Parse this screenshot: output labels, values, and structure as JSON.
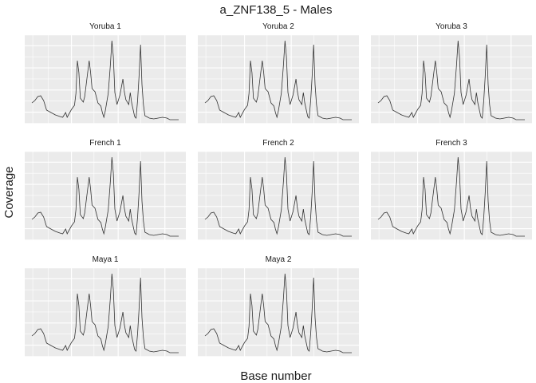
{
  "chart_data": {
    "type": "line",
    "title": "a_ZNF138_5 - Males",
    "xlabel": "Base number",
    "ylabel": "Coverage",
    "facets": [
      {
        "name": "Yoruba 1"
      },
      {
        "name": "Yoruba 2"
      },
      {
        "name": "Yoruba 3"
      },
      {
        "name": "French 1"
      },
      {
        "name": "French 2"
      },
      {
        "name": "French 3"
      },
      {
        "name": "Maya 1"
      },
      {
        "name": "Maya 2"
      }
    ],
    "grid": true,
    "panel_background": "#EBEBEB",
    "gridline_color": "#FFFFFF",
    "line_color": "#333333",
    "coverage_profile": [
      [
        0.0,
        0.22
      ],
      [
        0.02,
        0.25
      ],
      [
        0.04,
        0.3
      ],
      [
        0.06,
        0.31
      ],
      [
        0.08,
        0.25
      ],
      [
        0.1,
        0.13
      ],
      [
        0.13,
        0.1
      ],
      [
        0.16,
        0.07
      ],
      [
        0.19,
        0.05
      ],
      [
        0.21,
        0.04
      ],
      [
        0.23,
        0.1
      ],
      [
        0.24,
        0.04
      ],
      [
        0.27,
        0.14
      ],
      [
        0.29,
        0.19
      ],
      [
        0.3,
        0.34
      ],
      [
        0.31,
        0.75
      ],
      [
        0.32,
        0.6
      ],
      [
        0.33,
        0.28
      ],
      [
        0.35,
        0.23
      ],
      [
        0.36,
        0.3
      ],
      [
        0.38,
        0.6
      ],
      [
        0.39,
        0.75
      ],
      [
        0.4,
        0.6
      ],
      [
        0.41,
        0.4
      ],
      [
        0.43,
        0.36
      ],
      [
        0.45,
        0.22
      ],
      [
        0.47,
        0.18
      ],
      [
        0.48,
        0.1
      ],
      [
        0.49,
        0.04
      ],
      [
        0.5,
        0.12
      ],
      [
        0.52,
        0.34
      ],
      [
        0.535,
        0.7
      ],
      [
        0.545,
        1.0
      ],
      [
        0.555,
        0.8
      ],
      [
        0.565,
        0.35
      ],
      [
        0.58,
        0.2
      ],
      [
        0.6,
        0.32
      ],
      [
        0.62,
        0.52
      ],
      [
        0.63,
        0.36
      ],
      [
        0.64,
        0.26
      ],
      [
        0.66,
        0.2
      ],
      [
        0.67,
        0.35
      ],
      [
        0.68,
        0.22
      ],
      [
        0.7,
        0.05
      ],
      [
        0.71,
        0.03
      ],
      [
        0.72,
        0.25
      ],
      [
        0.73,
        0.55
      ],
      [
        0.74,
        0.95
      ],
      [
        0.75,
        0.45
      ],
      [
        0.76,
        0.2
      ],
      [
        0.77,
        0.06
      ],
      [
        0.8,
        0.03
      ],
      [
        0.83,
        0.02
      ],
      [
        0.86,
        0.03
      ],
      [
        0.89,
        0.04
      ],
      [
        0.92,
        0.03
      ],
      [
        0.94,
        0.01
      ],
      [
        1.0,
        0.01
      ]
    ]
  }
}
